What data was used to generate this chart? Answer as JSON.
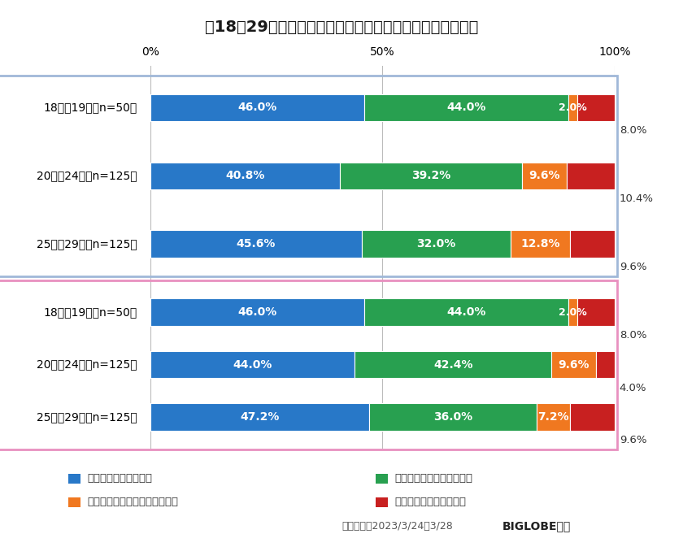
{
  "title": "、18～29歳・性年代別】他人に迷惑をかけることへの意識",
  "categories_male": [
    "18歳・19歳（n=50）",
    "20歳～24歳（n=125）",
    "25歳～29歳（n=125）"
  ],
  "categories_female": [
    "18歳・19歳（n=50）",
    "20歳～24歳（n=125）",
    "25歳～29歳（n=125）"
  ],
  "data_male": [
    [
      46.0,
      44.0,
      2.0,
      8.0
    ],
    [
      40.8,
      39.2,
      9.6,
      10.4
    ],
    [
      45.6,
      32.0,
      12.8,
      9.6
    ]
  ],
  "data_female": [
    [
      46.0,
      44.0,
      2.0,
      8.0
    ],
    [
      44.0,
      42.4,
      9.6,
      4.0
    ],
    [
      47.2,
      36.0,
      7.2,
      9.6
    ]
  ],
  "colors": [
    "#2878c8",
    "#28a050",
    "#f07820",
    "#c82020"
  ],
  "legend_labels": [
    "意識して生活している",
    "やや意識して生活している",
    "あまり意識して生活していない",
    "意識して生活していない"
  ],
  "male_box_color": "#a0b8d8",
  "female_box_color": "#e890c0",
  "background_color": "#ffffff",
  "footer_text": "調査期間：2023/3/24～3/28",
  "footer_brand": "BIGLOBE調べ",
  "bar_height": 0.52,
  "bar_text_fontsize": 10,
  "axis_label_fontsize": 10,
  "title_fontsize": 14,
  "cat_fontsize": 10,
  "label_fontsize": 16
}
